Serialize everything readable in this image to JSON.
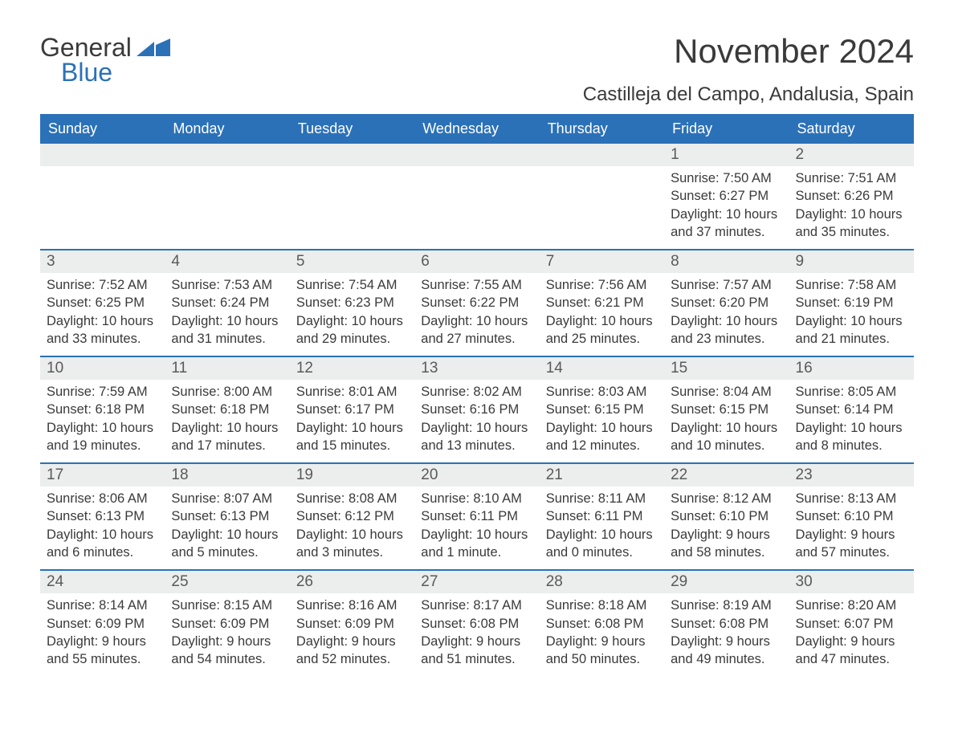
{
  "brand": {
    "word1": "General",
    "word2": "Blue"
  },
  "title": "November 2024",
  "location": "Castilleja del Campo, Andalusia, Spain",
  "colors": {
    "brand_blue": "#2b71b8",
    "header_bg": "#2b71b8",
    "header_text": "#ffffff",
    "daynum_bg": "#eceded",
    "text": "#3a3a3a",
    "row_border": "#2b71b8",
    "page_bg": "#ffffff"
  },
  "columns": [
    "Sunday",
    "Monday",
    "Tuesday",
    "Wednesday",
    "Thursday",
    "Friday",
    "Saturday"
  ],
  "weeks": [
    [
      {
        "empty": true
      },
      {
        "empty": true
      },
      {
        "empty": true
      },
      {
        "empty": true
      },
      {
        "empty": true
      },
      {
        "day": "1",
        "sunrise": "Sunrise: 7:50 AM",
        "sunset": "Sunset: 6:27 PM",
        "daylight": "Daylight: 10 hours and 37 minutes."
      },
      {
        "day": "2",
        "sunrise": "Sunrise: 7:51 AM",
        "sunset": "Sunset: 6:26 PM",
        "daylight": "Daylight: 10 hours and 35 minutes."
      }
    ],
    [
      {
        "day": "3",
        "sunrise": "Sunrise: 7:52 AM",
        "sunset": "Sunset: 6:25 PM",
        "daylight": "Daylight: 10 hours and 33 minutes."
      },
      {
        "day": "4",
        "sunrise": "Sunrise: 7:53 AM",
        "sunset": "Sunset: 6:24 PM",
        "daylight": "Daylight: 10 hours and 31 minutes."
      },
      {
        "day": "5",
        "sunrise": "Sunrise: 7:54 AM",
        "sunset": "Sunset: 6:23 PM",
        "daylight": "Daylight: 10 hours and 29 minutes."
      },
      {
        "day": "6",
        "sunrise": "Sunrise: 7:55 AM",
        "sunset": "Sunset: 6:22 PM",
        "daylight": "Daylight: 10 hours and 27 minutes."
      },
      {
        "day": "7",
        "sunrise": "Sunrise: 7:56 AM",
        "sunset": "Sunset: 6:21 PM",
        "daylight": "Daylight: 10 hours and 25 minutes."
      },
      {
        "day": "8",
        "sunrise": "Sunrise: 7:57 AM",
        "sunset": "Sunset: 6:20 PM",
        "daylight": "Daylight: 10 hours and 23 minutes."
      },
      {
        "day": "9",
        "sunrise": "Sunrise: 7:58 AM",
        "sunset": "Sunset: 6:19 PM",
        "daylight": "Daylight: 10 hours and 21 minutes."
      }
    ],
    [
      {
        "day": "10",
        "sunrise": "Sunrise: 7:59 AM",
        "sunset": "Sunset: 6:18 PM",
        "daylight": "Daylight: 10 hours and 19 minutes."
      },
      {
        "day": "11",
        "sunrise": "Sunrise: 8:00 AM",
        "sunset": "Sunset: 6:18 PM",
        "daylight": "Daylight: 10 hours and 17 minutes."
      },
      {
        "day": "12",
        "sunrise": "Sunrise: 8:01 AM",
        "sunset": "Sunset: 6:17 PM",
        "daylight": "Daylight: 10 hours and 15 minutes."
      },
      {
        "day": "13",
        "sunrise": "Sunrise: 8:02 AM",
        "sunset": "Sunset: 6:16 PM",
        "daylight": "Daylight: 10 hours and 13 minutes."
      },
      {
        "day": "14",
        "sunrise": "Sunrise: 8:03 AM",
        "sunset": "Sunset: 6:15 PM",
        "daylight": "Daylight: 10 hours and 12 minutes."
      },
      {
        "day": "15",
        "sunrise": "Sunrise: 8:04 AM",
        "sunset": "Sunset: 6:15 PM",
        "daylight": "Daylight: 10 hours and 10 minutes."
      },
      {
        "day": "16",
        "sunrise": "Sunrise: 8:05 AM",
        "sunset": "Sunset: 6:14 PM",
        "daylight": "Daylight: 10 hours and 8 minutes."
      }
    ],
    [
      {
        "day": "17",
        "sunrise": "Sunrise: 8:06 AM",
        "sunset": "Sunset: 6:13 PM",
        "daylight": "Daylight: 10 hours and 6 minutes."
      },
      {
        "day": "18",
        "sunrise": "Sunrise: 8:07 AM",
        "sunset": "Sunset: 6:13 PM",
        "daylight": "Daylight: 10 hours and 5 minutes."
      },
      {
        "day": "19",
        "sunrise": "Sunrise: 8:08 AM",
        "sunset": "Sunset: 6:12 PM",
        "daylight": "Daylight: 10 hours and 3 minutes."
      },
      {
        "day": "20",
        "sunrise": "Sunrise: 8:10 AM",
        "sunset": "Sunset: 6:11 PM",
        "daylight": "Daylight: 10 hours and 1 minute."
      },
      {
        "day": "21",
        "sunrise": "Sunrise: 8:11 AM",
        "sunset": "Sunset: 6:11 PM",
        "daylight": "Daylight: 10 hours and 0 minutes."
      },
      {
        "day": "22",
        "sunrise": "Sunrise: 8:12 AM",
        "sunset": "Sunset: 6:10 PM",
        "daylight": "Daylight: 9 hours and 58 minutes."
      },
      {
        "day": "23",
        "sunrise": "Sunrise: 8:13 AM",
        "sunset": "Sunset: 6:10 PM",
        "daylight": "Daylight: 9 hours and 57 minutes."
      }
    ],
    [
      {
        "day": "24",
        "sunrise": "Sunrise: 8:14 AM",
        "sunset": "Sunset: 6:09 PM",
        "daylight": "Daylight: 9 hours and 55 minutes."
      },
      {
        "day": "25",
        "sunrise": "Sunrise: 8:15 AM",
        "sunset": "Sunset: 6:09 PM",
        "daylight": "Daylight: 9 hours and 54 minutes."
      },
      {
        "day": "26",
        "sunrise": "Sunrise: 8:16 AM",
        "sunset": "Sunset: 6:09 PM",
        "daylight": "Daylight: 9 hours and 52 minutes."
      },
      {
        "day": "27",
        "sunrise": "Sunrise: 8:17 AM",
        "sunset": "Sunset: 6:08 PM",
        "daylight": "Daylight: 9 hours and 51 minutes."
      },
      {
        "day": "28",
        "sunrise": "Sunrise: 8:18 AM",
        "sunset": "Sunset: 6:08 PM",
        "daylight": "Daylight: 9 hours and 50 minutes."
      },
      {
        "day": "29",
        "sunrise": "Sunrise: 8:19 AM",
        "sunset": "Sunset: 6:08 PM",
        "daylight": "Daylight: 9 hours and 49 minutes."
      },
      {
        "day": "30",
        "sunrise": "Sunrise: 8:20 AM",
        "sunset": "Sunset: 6:07 PM",
        "daylight": "Daylight: 9 hours and 47 minutes."
      }
    ]
  ]
}
